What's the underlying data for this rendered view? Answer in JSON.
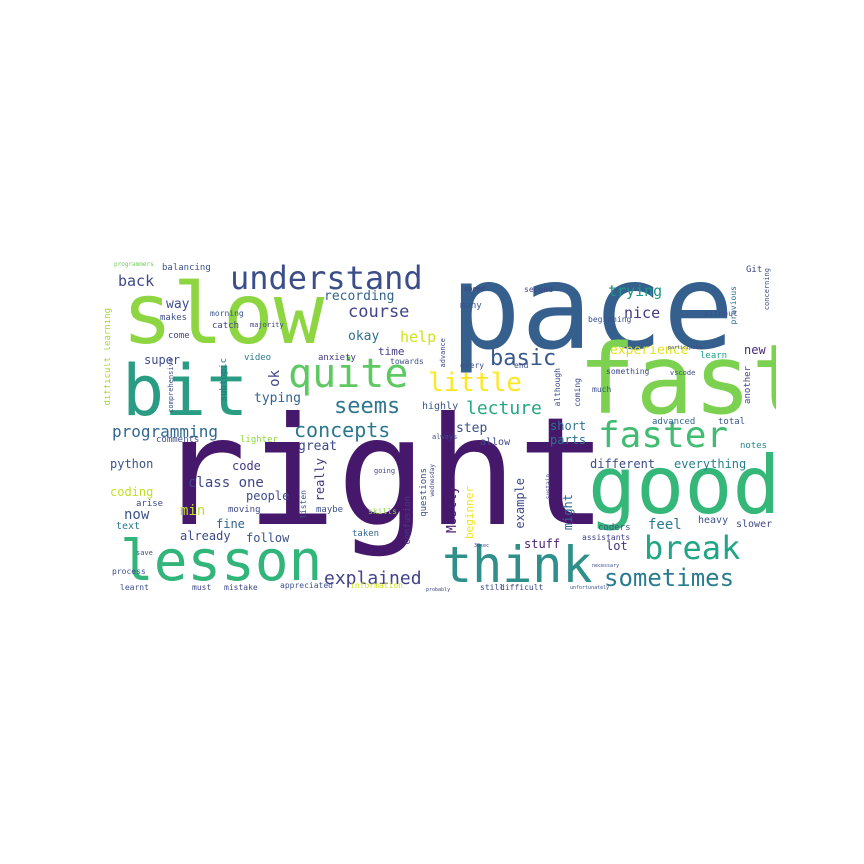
{
  "words": [
    {
      "text": "right",
      "color": "#46186b"
    },
    {
      "text": "pace",
      "color": "#355f8d"
    },
    {
      "text": "slow",
      "color": "#8ed542"
    },
    {
      "text": "fast",
      "color": "#7cd250"
    },
    {
      "text": "good",
      "color": "#35b779"
    },
    {
      "text": "bit",
      "color": "#2a9c83"
    },
    {
      "text": "lesson",
      "color": "#31b57b"
    },
    {
      "text": "think",
      "color": "#2f8f8b"
    },
    {
      "text": "quite",
      "color": "#5ec962"
    },
    {
      "text": "understand",
      "color": "#3b4e8a"
    },
    {
      "text": "faster",
      "color": "#40bd72"
    },
    {
      "text": "break",
      "color": "#21a685"
    },
    {
      "text": "little",
      "color": "#fde725"
    },
    {
      "text": "sometimes",
      "color": "#2b7c8e"
    },
    {
      "text": "seems",
      "color": "#30768e"
    },
    {
      "text": "concepts",
      "color": "#2a788e"
    },
    {
      "text": "basic",
      "color": "#38598c"
    },
    {
      "text": "explained",
      "color": "#42418a"
    },
    {
      "text": "lecture",
      "color": "#26a784"
    },
    {
      "text": "programming",
      "color": "#31678e"
    },
    {
      "text": "course",
      "color": "#404387"
    },
    {
      "text": "recording",
      "color": "#33638d"
    },
    {
      "text": "help",
      "color": "#d2e21b"
    },
    {
      "text": "trying",
      "color": "#1f968b"
    },
    {
      "text": "nice",
      "color": "#453781"
    },
    {
      "text": "experience",
      "color": "#e2e418"
    },
    {
      "text": "different",
      "color": "#3e4a89"
    },
    {
      "text": "everything",
      "color": "#277f8e"
    },
    {
      "text": "feel",
      "color": "#2a788e"
    },
    {
      "text": "step",
      "color": "#3b528b"
    },
    {
      "text": "parts",
      "color": "#2d708e"
    },
    {
      "text": "short",
      "color": "#2c728e"
    },
    {
      "text": "stuff",
      "color": "#481f70"
    },
    {
      "text": "lot",
      "color": "#46337f"
    },
    {
      "text": "great",
      "color": "#3e4989"
    },
    {
      "text": "typing",
      "color": "#32648e"
    },
    {
      "text": "time",
      "color": "#433e85"
    },
    {
      "text": "okay",
      "color": "#2d708e"
    },
    {
      "text": "back",
      "color": "#3f4889"
    },
    {
      "text": "way",
      "color": "#3d4e8a"
    },
    {
      "text": "super",
      "color": "#3d4d8a"
    },
    {
      "text": "python",
      "color": "#3a548c"
    },
    {
      "text": "code",
      "color": "#443983"
    },
    {
      "text": "class one",
      "color": "#3f4788"
    },
    {
      "text": "people",
      "color": "#3e4c8a"
    },
    {
      "text": "coding",
      "color": "#c0df25"
    },
    {
      "text": "now",
      "color": "#3b528b"
    },
    {
      "text": "min",
      "color": "#bddf26"
    },
    {
      "text": "fine",
      "color": "#33638d"
    },
    {
      "text": "already",
      "color": "#3e4989"
    },
    {
      "text": "follow",
      "color": "#3b518b"
    },
    {
      "text": "new",
      "color": "#482979"
    },
    {
      "text": "heavy",
      "color": "#3b528b"
    },
    {
      "text": "slower",
      "color": "#3f4889"
    },
    {
      "text": "Mostly",
      "color": "#481c6e"
    },
    {
      "text": "beginner",
      "color": "#f1e51d"
    },
    {
      "text": "example",
      "color": "#3e4a89"
    },
    {
      "text": "might",
      "color": "#31678e"
    },
    {
      "text": "really",
      "color": "#463480"
    },
    {
      "text": "ok",
      "color": "#3f4788"
    },
    {
      "text": "advanced",
      "color": "#31688e"
    },
    {
      "text": "total",
      "color": "#39568c"
    },
    {
      "text": "notes",
      "color": "#24878e"
    },
    {
      "text": "learn",
      "color": "#1f9e89"
    },
    {
      "text": "highly",
      "color": "#3b528b"
    },
    {
      "text": "allow",
      "color": "#3e4a89"
    },
    {
      "text": "subtopic",
      "color": "#2e6f8e"
    },
    {
      "text": "balancing",
      "color": "#3a548c"
    },
    {
      "text": "makes",
      "color": "#3e4c8a"
    },
    {
      "text": "come",
      "color": "#404688"
    },
    {
      "text": "catch",
      "color": "#404588"
    },
    {
      "text": "morning",
      "color": "#3a538b"
    },
    {
      "text": "video",
      "color": "#2a788e"
    },
    {
      "text": "anxiety",
      "color": "#453882"
    },
    {
      "text": "towards",
      "color": "#3c4f8a"
    },
    {
      "text": "comments",
      "color": "#3d4d8a"
    },
    {
      "text": "lighter",
      "color": "#90d743"
    },
    {
      "text": "moving",
      "color": "#3e4989"
    },
    {
      "text": "arise",
      "color": "#3f4889"
    },
    {
      "text": "text",
      "color": "#2a778e"
    },
    {
      "text": "maybe",
      "color": "#3b528b"
    },
    {
      "text": "listen",
      "color": "#39568c"
    },
    {
      "text": "taken",
      "color": "#31688e"
    },
    {
      "text": "confusion",
      "color": "#443a83"
    },
    {
      "text": "questions",
      "color": "#3b518b"
    },
    {
      "text": "skills",
      "color": "#8bd646"
    },
    {
      "text": "coders",
      "color": "#3b528b"
    },
    {
      "text": "assistants",
      "color": "#404387"
    },
    {
      "text": "learnt",
      "color": "#3b518b"
    },
    {
      "text": "must",
      "color": "#3f4788"
    },
    {
      "text": "mistake",
      "color": "#3e4a89"
    },
    {
      "text": "appreciated",
      "color": "#3b528b"
    },
    {
      "text": "information",
      "color": "#d0e11c"
    },
    {
      "text": "still",
      "color": "#3e4c8a"
    },
    {
      "text": "difficult",
      "color": "#3f4788"
    },
    {
      "text": "process",
      "color": "#3b518b"
    },
    {
      "text": "many",
      "color": "#39558c"
    },
    {
      "text": "second",
      "color": "#404588"
    },
    {
      "text": "speed",
      "color": "#433d84"
    },
    {
      "text": "end",
      "color": "#3b528b"
    },
    {
      "text": "every",
      "color": "#3c4f8a"
    },
    {
      "text": "much",
      "color": "#3d4d8a"
    },
    {
      "text": "coming",
      "color": "#3e4989"
    },
    {
      "text": "something",
      "color": "#3f4889"
    },
    {
      "text": "beginning",
      "color": "#3b528b"
    },
    {
      "text": "advance",
      "color": "#3e4a89"
    },
    {
      "text": "although",
      "color": "#3d4d8a"
    },
    {
      "text": "vscode",
      "color": "#3e4a89"
    },
    {
      "text": "another",
      "color": "#3f4788"
    },
    {
      "text": "previous",
      "color": "#2c728e"
    },
    {
      "text": "without",
      "color": "#3b528b"
    },
    {
      "text": "Git",
      "color": "#3f4788"
    },
    {
      "text": "difficult learning",
      "color": "#a2da37"
    },
    {
      "text": "programmers",
      "color": "#6ece58"
    },
    {
      "text": "always",
      "color": "#3e4a89"
    },
    {
      "text": "going",
      "color": "#3f4788"
    },
    {
      "text": "sustain",
      "color": "#3b528b"
    },
    {
      "text": "wednesday",
      "color": "#3e4989"
    },
    {
      "text": "concerning",
      "color": "#3f4889"
    },
    {
      "text": "comprehensive",
      "color": "#3e4c8a"
    },
    {
      "text": "majority",
      "color": "#3b518b"
    },
    {
      "text": "save",
      "color": "#3f4788"
    },
    {
      "text": "30sec",
      "color": "#3e4a89"
    },
    {
      "text": "probably",
      "color": "#3e4989"
    },
    {
      "text": "unfortunately",
      "color": "#3f4788"
    },
    {
      "text": "necessary",
      "color": "#3b528b"
    },
    {
      "text": "participate",
      "color": "#3e4a89"
    },
    {
      "text": "possible",
      "color": "#3f4889"
    }
  ]
}
